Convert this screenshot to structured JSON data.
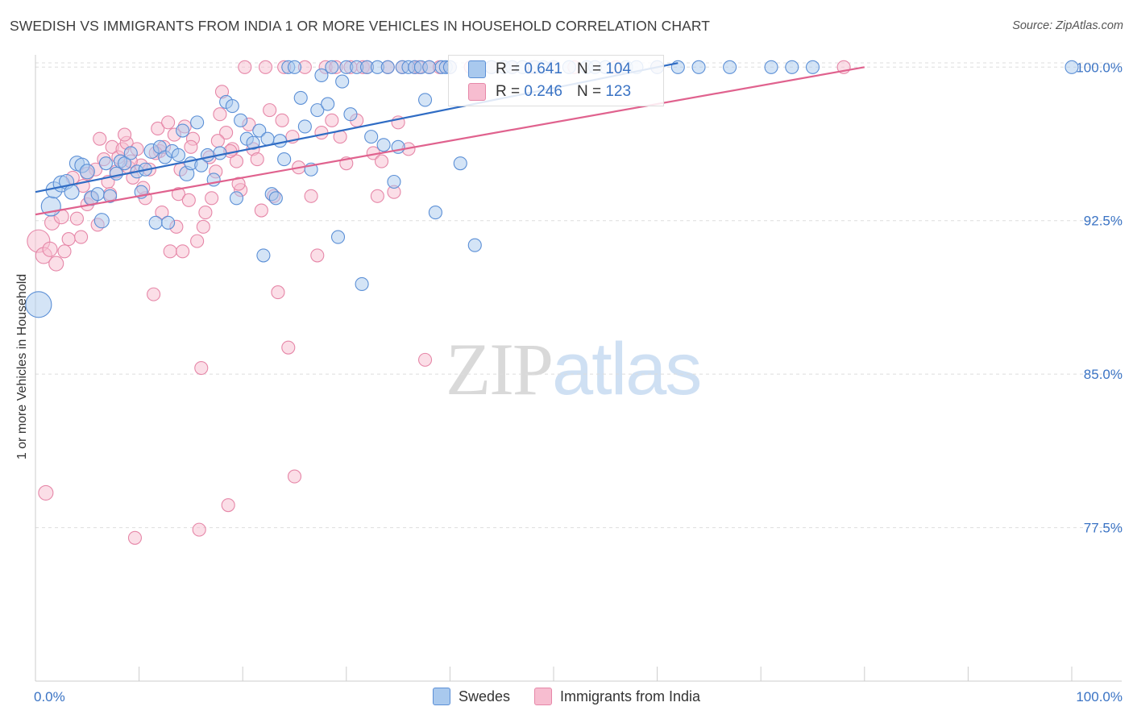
{
  "title": "SWEDISH VS IMMIGRANTS FROM INDIA 1 OR MORE VEHICLES IN HOUSEHOLD CORRELATION CHART",
  "source": "Source: ZipAtlas.com",
  "watermark": {
    "zip": "ZIP",
    "atlas": "atlas"
  },
  "colors": {
    "swedes_fill": "#a9c9ee",
    "swedes_stroke": "#5b8fd6",
    "swedes_line": "#2f6cc4",
    "india_fill": "#f7bdd0",
    "india_stroke": "#e687a8",
    "india_line": "#e0628e",
    "axis_label": "#3a73c4",
    "grid": "#dddddd"
  },
  "stats": {
    "swedes": {
      "r_label": "R =",
      "r_value": "0.641",
      "n_label": "N =",
      "n_value": "104"
    },
    "india": {
      "r_label": "R =",
      "r_value": "0.246",
      "n_label": "N =",
      "n_value": "123"
    }
  },
  "legend": {
    "swedes": "Swedes",
    "india": "Immigrants from India"
  },
  "chart_data": {
    "type": "scatter",
    "xlabel": "",
    "ylabel": "1 or more Vehicles in Household",
    "xlim": [
      0,
      100
    ],
    "ylim": [
      70,
      100.8
    ],
    "x_tick_labels": [
      {
        "value": 0,
        "label": "0.0%"
      },
      {
        "value": 100,
        "label": "100.0%"
      }
    ],
    "y_tick_labels": [
      {
        "value": 100,
        "label": "100.0%"
      },
      {
        "value": 92.5,
        "label": "92.5%"
      },
      {
        "value": 85,
        "label": "85.0%"
      },
      {
        "value": 77.5,
        "label": "77.5%"
      }
    ],
    "grid": true,
    "legend_position": "bottom-center",
    "series": [
      {
        "name": "Swedes",
        "trend": {
          "x": [
            0,
            62
          ],
          "y": [
            93.9,
            100.2
          ]
        },
        "points": [
          [
            0.3,
            88.4,
            16
          ],
          [
            1.5,
            93.2,
            12
          ],
          [
            1.8,
            94.0,
            10
          ],
          [
            2.5,
            94.3,
            10
          ],
          [
            3.0,
            94.4,
            9
          ],
          [
            3.5,
            93.9,
            9
          ],
          [
            4.0,
            95.3,
            9
          ],
          [
            4.5,
            95.2,
            9
          ],
          [
            5.0,
            94.9,
            9
          ],
          [
            5.4,
            93.6,
            9
          ],
          [
            6.0,
            93.8,
            8
          ],
          [
            6.4,
            92.5,
            9
          ],
          [
            6.8,
            95.3,
            8
          ],
          [
            7.2,
            93.7,
            8
          ],
          [
            7.8,
            94.8,
            8
          ],
          [
            8.2,
            95.4,
            8
          ],
          [
            8.6,
            95.3,
            8
          ],
          [
            9.2,
            95.8,
            8
          ],
          [
            9.8,
            94.9,
            8
          ],
          [
            10.2,
            93.9,
            8
          ],
          [
            10.6,
            95.0,
            8
          ],
          [
            11.2,
            95.9,
            9
          ],
          [
            11.6,
            92.4,
            8
          ],
          [
            12.0,
            96.1,
            8
          ],
          [
            12.5,
            95.6,
            8
          ],
          [
            12.8,
            92.4,
            8
          ],
          [
            13.2,
            95.9,
            8
          ],
          [
            13.8,
            95.7,
            8
          ],
          [
            14.2,
            96.9,
            8
          ],
          [
            14.6,
            94.8,
            9
          ],
          [
            15.0,
            95.3,
            8
          ],
          [
            15.6,
            97.3,
            8
          ],
          [
            16.0,
            95.2,
            8
          ],
          [
            16.6,
            95.7,
            8
          ],
          [
            17.2,
            94.5,
            8
          ],
          [
            17.8,
            95.8,
            8
          ],
          [
            18.4,
            98.3,
            8
          ],
          [
            19.0,
            98.1,
            8
          ],
          [
            19.4,
            93.6,
            8
          ],
          [
            19.8,
            97.4,
            8
          ],
          [
            20.4,
            96.5,
            8
          ],
          [
            21.0,
            96.3,
            8
          ],
          [
            21.6,
            96.9,
            8
          ],
          [
            22.0,
            90.8,
            8
          ],
          [
            22.4,
            96.5,
            8
          ],
          [
            22.8,
            93.8,
            8
          ],
          [
            23.2,
            93.6,
            8
          ],
          [
            23.6,
            96.4,
            8
          ],
          [
            24.0,
            95.5,
            8
          ],
          [
            24.4,
            100.0,
            8
          ],
          [
            25.0,
            100.0,
            8
          ],
          [
            25.6,
            98.5,
            8
          ],
          [
            26.0,
            97.1,
            8
          ],
          [
            26.6,
            95.0,
            8
          ],
          [
            27.2,
            97.9,
            8
          ],
          [
            27.6,
            99.6,
            8
          ],
          [
            28.2,
            98.2,
            8
          ],
          [
            28.6,
            100.0,
            8
          ],
          [
            29.2,
            91.7,
            8
          ],
          [
            29.6,
            99.3,
            8
          ],
          [
            30.0,
            100.0,
            8
          ],
          [
            30.4,
            97.7,
            8
          ],
          [
            31.0,
            100.0,
            8
          ],
          [
            31.5,
            89.4,
            8
          ],
          [
            32.0,
            100.0,
            8
          ],
          [
            32.4,
            96.6,
            8
          ],
          [
            33.0,
            100.0,
            8
          ],
          [
            33.6,
            96.2,
            8
          ],
          [
            34.0,
            100.0,
            8
          ],
          [
            34.6,
            94.4,
            8
          ],
          [
            35.0,
            96.1,
            8
          ],
          [
            35.4,
            100.0,
            8
          ],
          [
            36.0,
            100.0,
            8
          ],
          [
            36.6,
            100.0,
            8
          ],
          [
            37.2,
            100.0,
            8
          ],
          [
            37.6,
            98.4,
            8
          ],
          [
            38.0,
            100.0,
            8
          ],
          [
            38.6,
            92.9,
            8
          ],
          [
            39.2,
            100.0,
            8
          ],
          [
            39.6,
            100.0,
            8
          ],
          [
            40.0,
            100.0,
            8
          ],
          [
            41.0,
            95.3,
            8
          ],
          [
            42.4,
            91.3,
            8
          ],
          [
            44.0,
            100.0,
            8
          ],
          [
            45.2,
            100.0,
            8
          ],
          [
            46.0,
            100.0,
            8
          ],
          [
            47.0,
            100.0,
            8
          ],
          [
            48.2,
            100.0,
            8
          ],
          [
            49.0,
            100.0,
            8
          ],
          [
            50.0,
            100.0,
            8
          ],
          [
            51.5,
            100.0,
            8
          ],
          [
            53.2,
            100.0,
            8
          ],
          [
            54.0,
            100.0,
            8
          ],
          [
            55.0,
            100.0,
            8
          ],
          [
            57.0,
            100.0,
            8
          ],
          [
            58.0,
            100.0,
            8
          ],
          [
            60.0,
            100.0,
            8
          ],
          [
            62.0,
            100.0,
            8
          ],
          [
            64.0,
            100.0,
            8
          ],
          [
            67.0,
            100.0,
            8
          ],
          [
            71.0,
            100.0,
            8
          ],
          [
            73.0,
            100.0,
            8
          ],
          [
            75.0,
            100.0,
            8
          ],
          [
            100.0,
            100.0,
            8
          ]
        ]
      },
      {
        "name": "Immigrants from India",
        "trend": {
          "x": [
            0,
            80
          ],
          "y": [
            92.8,
            100.0
          ]
        },
        "points": [
          [
            0.3,
            91.5,
            14
          ],
          [
            0.8,
            90.8,
            10
          ],
          [
            1.0,
            79.2,
            9
          ],
          [
            1.4,
            91.1,
            9
          ],
          [
            1.6,
            92.4,
            9
          ],
          [
            2.0,
            90.4,
            9
          ],
          [
            2.5,
            92.7,
            9
          ],
          [
            2.8,
            91.0,
            8
          ],
          [
            3.2,
            91.6,
            8
          ],
          [
            3.6,
            94.6,
            8
          ],
          [
            4.0,
            92.6,
            8
          ],
          [
            4.4,
            91.7,
            8
          ],
          [
            4.6,
            94.2,
            8
          ],
          [
            5.0,
            93.3,
            8
          ],
          [
            5.4,
            93.6,
            8
          ],
          [
            5.8,
            95.0,
            8
          ],
          [
            6.2,
            96.5,
            8
          ],
          [
            6.6,
            95.5,
            8
          ],
          [
            7.0,
            94.4,
            8
          ],
          [
            7.4,
            96.1,
            8
          ],
          [
            7.8,
            94.9,
            8
          ],
          [
            8.0,
            95.6,
            8
          ],
          [
            8.4,
            96.0,
            8
          ],
          [
            8.8,
            96.3,
            8
          ],
          [
            9.0,
            95.1,
            8
          ],
          [
            9.4,
            94.6,
            8
          ],
          [
            9.6,
            77.0,
            8
          ],
          [
            9.8,
            96.0,
            8
          ],
          [
            10.2,
            95.2,
            8
          ],
          [
            10.6,
            93.6,
            8
          ],
          [
            11.0,
            95.0,
            8
          ],
          [
            11.4,
            88.9,
            8
          ],
          [
            11.8,
            97.0,
            8
          ],
          [
            12.0,
            95.9,
            8
          ],
          [
            12.4,
            96.1,
            8
          ],
          [
            12.8,
            97.3,
            8
          ],
          [
            13.0,
            91.0,
            8
          ],
          [
            13.4,
            96.7,
            8
          ],
          [
            13.8,
            93.8,
            8
          ],
          [
            14.0,
            95.0,
            8
          ],
          [
            14.4,
            97.1,
            8
          ],
          [
            14.8,
            93.5,
            8
          ],
          [
            15.2,
            96.5,
            8
          ],
          [
            15.6,
            91.5,
            8
          ],
          [
            15.8,
            77.4,
            8
          ],
          [
            16.0,
            85.3,
            8
          ],
          [
            16.4,
            92.9,
            8
          ],
          [
            16.8,
            95.6,
            8
          ],
          [
            17.0,
            93.6,
            8
          ],
          [
            17.4,
            94.9,
            8
          ],
          [
            17.8,
            97.7,
            8
          ],
          [
            18.0,
            98.8,
            8
          ],
          [
            18.4,
            96.8,
            8
          ],
          [
            18.6,
            78.6,
            8
          ],
          [
            19.0,
            96.0,
            8
          ],
          [
            19.4,
            95.4,
            8
          ],
          [
            19.8,
            94.0,
            8
          ],
          [
            20.2,
            100.0,
            8
          ],
          [
            20.6,
            97.2,
            8
          ],
          [
            21.0,
            96.0,
            8
          ],
          [
            21.4,
            95.5,
            8
          ],
          [
            21.8,
            93.0,
            8
          ],
          [
            22.2,
            100.0,
            8
          ],
          [
            22.6,
            97.9,
            8
          ],
          [
            23.0,
            93.7,
            8
          ],
          [
            23.4,
            89.0,
            8
          ],
          [
            23.8,
            97.4,
            8
          ],
          [
            24.0,
            100.0,
            8
          ],
          [
            24.4,
            86.3,
            8
          ],
          [
            24.8,
            96.6,
            8
          ],
          [
            25.0,
            80.0,
            8
          ],
          [
            25.4,
            95.1,
            8
          ],
          [
            26.0,
            100.0,
            8
          ],
          [
            26.6,
            93.7,
            8
          ],
          [
            27.2,
            90.8,
            8
          ],
          [
            27.6,
            96.8,
            8
          ],
          [
            28.0,
            100.0,
            8
          ],
          [
            28.6,
            97.4,
            8
          ],
          [
            29.0,
            100.0,
            8
          ],
          [
            29.4,
            96.6,
            8
          ],
          [
            30.0,
            95.3,
            8
          ],
          [
            30.4,
            100.0,
            8
          ],
          [
            31.0,
            97.4,
            8
          ],
          [
            31.6,
            100.0,
            8
          ],
          [
            32.0,
            100.0,
            8
          ],
          [
            32.6,
            95.8,
            8
          ],
          [
            33.0,
            93.7,
            8
          ],
          [
            33.4,
            95.4,
            8
          ],
          [
            34.0,
            100.0,
            8
          ],
          [
            34.6,
            93.9,
            8
          ],
          [
            35.0,
            97.3,
            8
          ],
          [
            35.4,
            100.0,
            8
          ],
          [
            36.0,
            96.0,
            8
          ],
          [
            36.6,
            100.0,
            8
          ],
          [
            37.0,
            100.0,
            8
          ],
          [
            37.6,
            85.7,
            8
          ],
          [
            38.0,
            100.0,
            8
          ],
          [
            39.0,
            100.0,
            8
          ],
          [
            40.0,
            100.0,
            8
          ],
          [
            42.0,
            100.0,
            8
          ],
          [
            44.0,
            100.0,
            8
          ],
          [
            46.0,
            100.0,
            8
          ],
          [
            48.0,
            100.0,
            8
          ],
          [
            50.0,
            100.0,
            8
          ],
          [
            52.0,
            100.0,
            8
          ],
          [
            56.0,
            100.0,
            8
          ],
          [
            60.0,
            100.0,
            8
          ],
          [
            78.0,
            100.0,
            8
          ],
          [
            5.0,
            94.8,
            8
          ],
          [
            6.0,
            92.3,
            8
          ],
          [
            7.2,
            93.8,
            8
          ],
          [
            8.6,
            96.7,
            8
          ],
          [
            9.2,
            95.4,
            8
          ],
          [
            10.4,
            94.1,
            8
          ],
          [
            11.6,
            95.8,
            8
          ],
          [
            12.2,
            92.9,
            8
          ],
          [
            13.6,
            92.2,
            8
          ],
          [
            14.2,
            91.0,
            8
          ],
          [
            15.0,
            96.1,
            8
          ],
          [
            16.2,
            92.2,
            8
          ],
          [
            17.6,
            96.4,
            8
          ],
          [
            18.8,
            95.9,
            8
          ],
          [
            19.6,
            94.3,
            8
          ]
        ]
      }
    ]
  }
}
